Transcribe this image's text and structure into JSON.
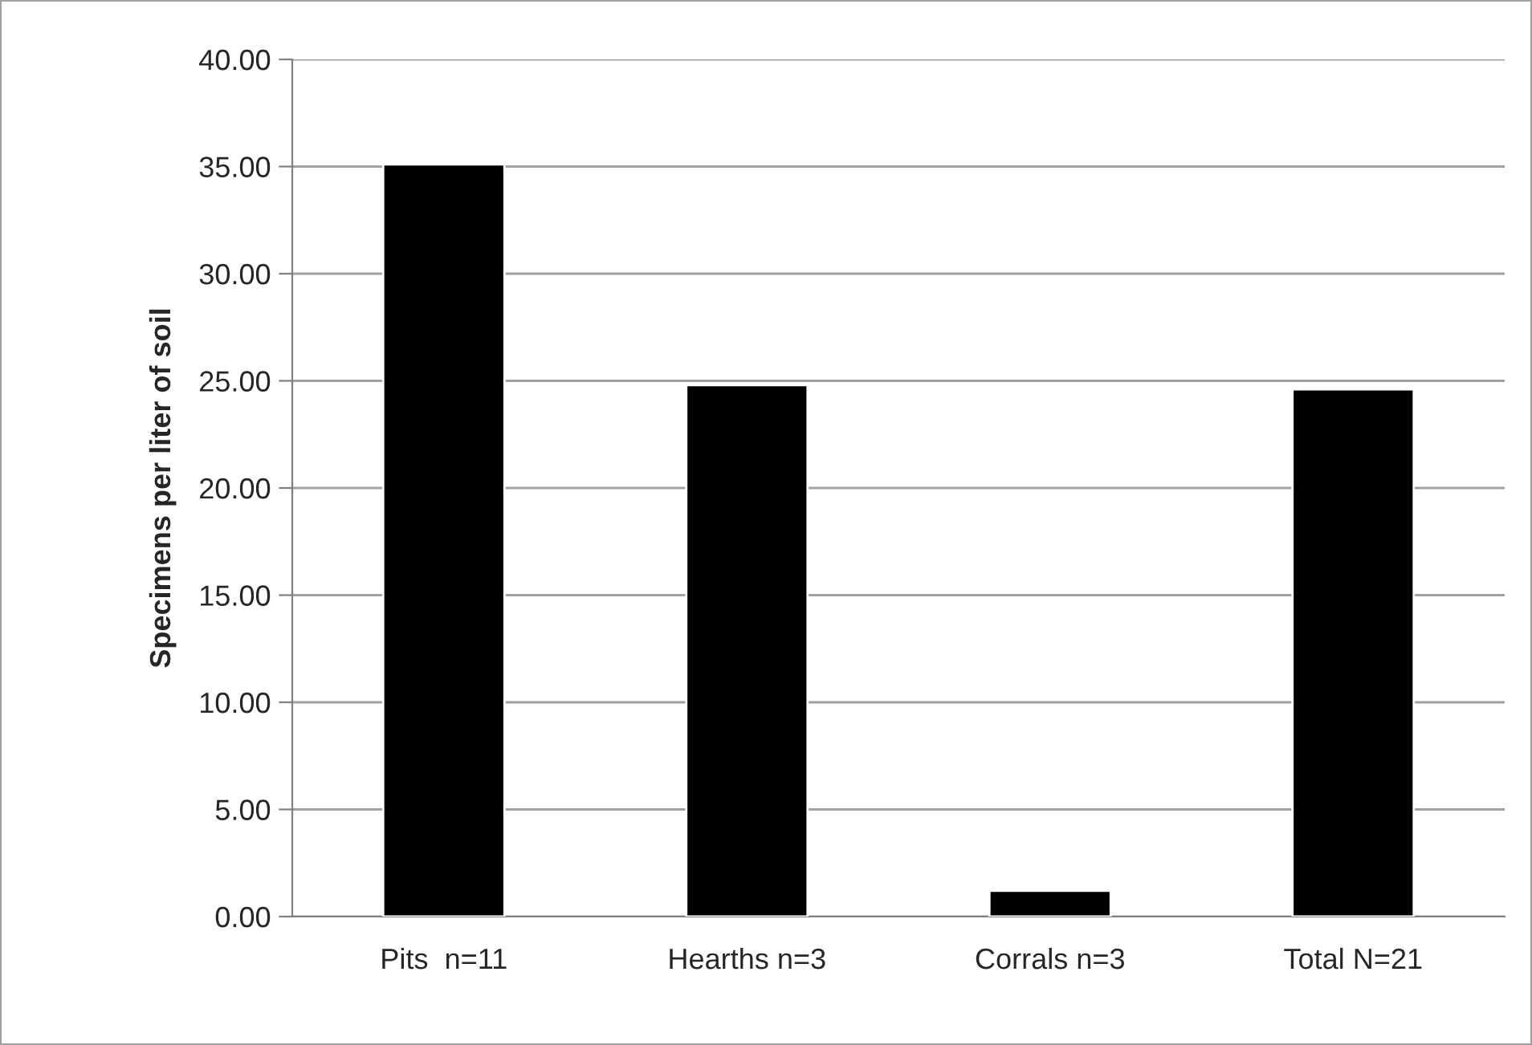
{
  "chart_data": {
    "type": "bar",
    "ylabel": "Specimens per liter of soil",
    "categories": [
      "Pits  n=11",
      "Hearths n=3",
      "Corrals n=3",
      "Total N=21"
    ],
    "values": [
      35.1,
      24.8,
      1.2,
      24.6
    ],
    "color": "#000000",
    "ylim": [
      0,
      40
    ],
    "yticks": [
      {
        "value": 0,
        "label": "0.00"
      },
      {
        "value": 5,
        "label": "5.00"
      },
      {
        "value": 10,
        "label": "10.00"
      },
      {
        "value": 15,
        "label": "15.00"
      },
      {
        "value": 20,
        "label": "20.00"
      },
      {
        "value": 25,
        "label": "25.00"
      },
      {
        "value": 30,
        "label": "30.00"
      },
      {
        "value": 35,
        "label": "35.00"
      },
      {
        "value": 40,
        "label": "40.00"
      }
    ],
    "grid": "y",
    "legend": false
  }
}
